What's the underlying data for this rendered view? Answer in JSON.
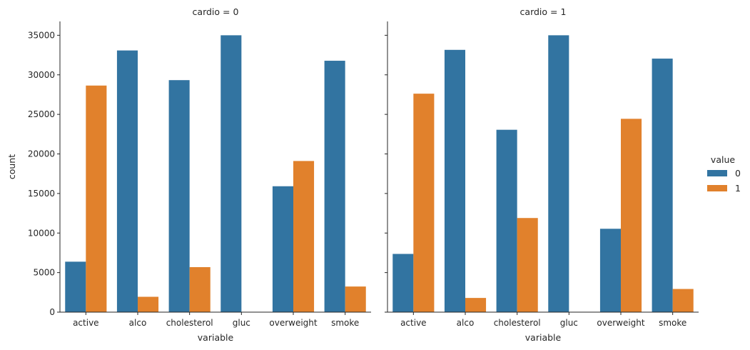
{
  "chart_data": {
    "type": "bar",
    "categories": [
      "active",
      "alco",
      "cholesterol",
      "gluc",
      "overweight",
      "smoke"
    ],
    "xlabel": "variable",
    "ylabel": "count",
    "ylim": [
      0,
      36750
    ],
    "yticks": [
      0,
      5000,
      10000,
      15000,
      20000,
      25000,
      30000,
      35000
    ],
    "legend": {
      "title": "value",
      "placement": "right",
      "entries": [
        {
          "label": "0",
          "color": "#3274a1"
        },
        {
          "label": "1",
          "color": "#e1812c"
        }
      ]
    },
    "panels": [
      {
        "title": "cardio = 0",
        "series": [
          {
            "name": "0",
            "color": "#3274a1",
            "values": [
              6378,
              33080,
              29330,
              35000,
              15915,
              31780
            ]
          },
          {
            "name": "1",
            "color": "#e1812c",
            "values": [
              28643,
              1941,
              5691,
              0,
              19106,
              3240
            ]
          }
        ]
      },
      {
        "title": "cardio = 1",
        "series": [
          {
            "name": "0",
            "color": "#3274a1",
            "values": [
              7361,
              33156,
              23055,
              35000,
              10539,
              32050
            ]
          },
          {
            "name": "1",
            "color": "#e1812c",
            "values": [
              27618,
              1795,
              11900,
              0,
              24440,
              2929
            ]
          }
        ]
      }
    ],
    "grid": false
  }
}
